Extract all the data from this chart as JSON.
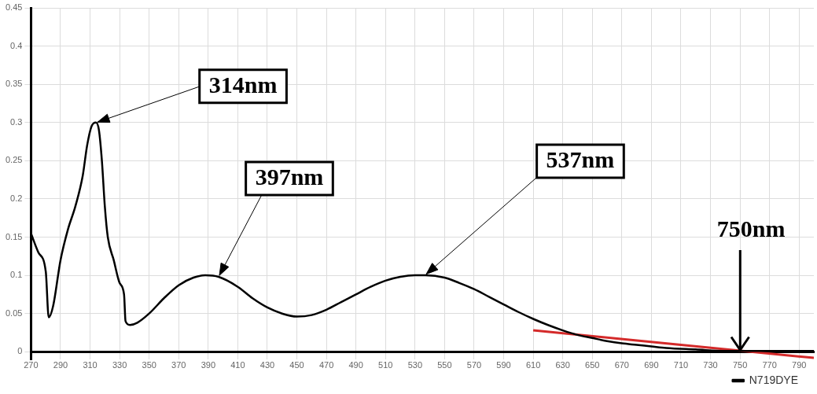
{
  "chart_data": {
    "type": "line",
    "xlim": [
      270,
      800
    ],
    "ylim": [
      -0.01,
      0.45
    ],
    "xticks": [
      270,
      290,
      310,
      330,
      350,
      370,
      390,
      410,
      430,
      450,
      470,
      490,
      510,
      530,
      550,
      570,
      590,
      610,
      630,
      650,
      670,
      690,
      710,
      730,
      750,
      770,
      790
    ],
    "yticks": [
      0,
      0.05,
      0.1,
      0.15,
      0.2,
      0.25,
      0.3,
      0.35,
      0.4,
      0.45
    ],
    "grid": true,
    "legend": "bottom right",
    "marker": "none",
    "line_style": "solid",
    "series": [
      {
        "name": "N719DYE",
        "color": "#000000",
        "x": [
          270,
          275,
          280,
          282,
          285,
          290,
          295,
          300,
          305,
          308,
          311,
          314,
          316,
          318,
          320,
          322,
          326,
          330,
          333,
          334,
          337,
          342,
          350,
          360,
          370,
          380,
          388,
          397,
          410,
          420,
          430,
          440,
          450,
          460,
          470,
          480,
          490,
          500,
          510,
          520,
          530,
          537,
          550,
          560,
          570,
          580,
          590,
          600,
          610,
          620,
          630,
          640,
          650,
          660,
          670,
          680,
          690,
          700,
          720,
          740,
          760,
          780,
          800
        ],
        "values": [
          0.155,
          0.13,
          0.105,
          0.045,
          0.06,
          0.12,
          0.16,
          0.19,
          0.23,
          0.27,
          0.295,
          0.3,
          0.29,
          0.25,
          0.19,
          0.15,
          0.12,
          0.09,
          0.075,
          0.04,
          0.035,
          0.038,
          0.05,
          0.07,
          0.087,
          0.097,
          0.1,
          0.098,
          0.085,
          0.07,
          0.058,
          0.05,
          0.046,
          0.048,
          0.055,
          0.065,
          0.075,
          0.085,
          0.093,
          0.098,
          0.1,
          0.1,
          0.097,
          0.09,
          0.082,
          0.072,
          0.062,
          0.052,
          0.043,
          0.035,
          0.028,
          0.022,
          0.018,
          0.014,
          0.011,
          0.009,
          0.007,
          0.005,
          0.003,
          0.001,
          0.001,
          0.001,
          0.001
        ]
      },
      {
        "type": "line",
        "color": "#d42a2a",
        "x": [
          610,
          800
        ],
        "values": [
          0.028,
          -0.008
        ]
      }
    ],
    "annotations": [
      {
        "text": "314nm",
        "x": 314,
        "y": 0.3
      },
      {
        "text": "397nm",
        "x": 397,
        "y": 0.098
      },
      {
        "text": "537nm",
        "x": 537,
        "y": 0.1
      },
      {
        "text": "750nm",
        "x": 750,
        "y": 0
      }
    ]
  }
}
